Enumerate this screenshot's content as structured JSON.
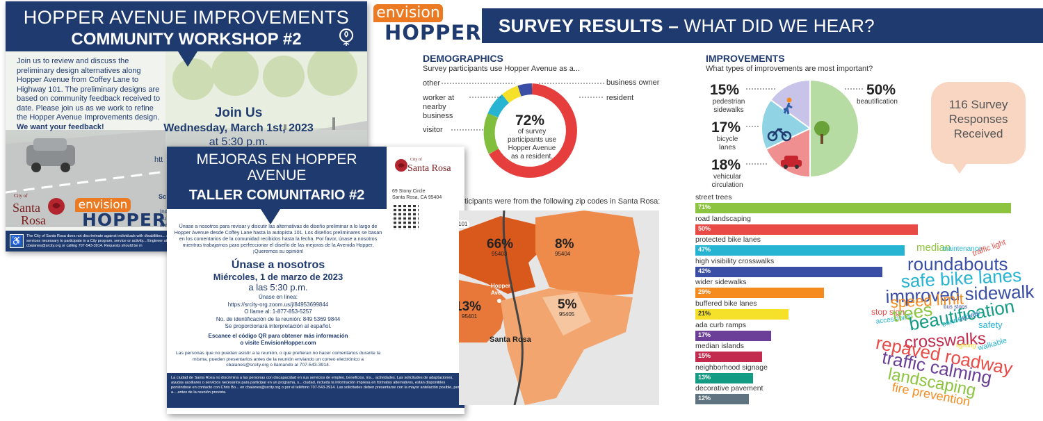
{
  "english_flyer": {
    "title_line1": "HOPPER AVENUE IMPROVEMENTS",
    "title_line2": "COMMUNITY WORKSHOP #2",
    "body": "Join us to review and discuss the preliminary design alternatives along Hopper Avenue from Coffey Lane to Highway 101. The preliminary designs are based on community feedback received to date. Please join us as we work to refine the Hopper Avenue Improvements design.",
    "feedback": "We want your feedback!",
    "join_title": "Join Us",
    "date": "Wednesday, March 1st, 2023",
    "time": "at 5:30 p.m.",
    "partial_1": "htt",
    "partial_2": "Sc",
    "partial_3": "Ind",
    "partial_4": "du",
    "partial_5": "em",
    "footer": "The City of Santa Rosa does not discriminate against individuals with disabilities... aids, or services necessary to participate in a City program, service or activity... Engineer at cbalanes@srcity.org or calling 707-543-3914. Requests should be m",
    "city_logo_line1": "City of",
    "city_logo_line2": "Santa",
    "city_logo_line3": "Rosa",
    "envision": "envision",
    "hopper": "HOPPER"
  },
  "spanish_flyer": {
    "title_line1": "MEJORAS EN HOPPER AVENUE",
    "title_line2": "TALLER COMUNITARIO #2",
    "city_logo_line1": "City of",
    "city_logo_line2": "Santa Rosa",
    "address_line1": "69 Stony Circle",
    "address_line2": "Santa Rosa, CA 95404",
    "body": "Únase a nosotros para revisar y discutir las alternativas de diseño preliminar a lo largo de Hopper Avenue desde Coffey Lane hasta la autopista 101. Los diseños preliminares se basan en los comentarios de la comunidad recibidos hasta la fecha. Por favor, únase a nosotros mientras trabajamos para perfeccionar el diseño de las mejoras de la Avenida Hopper. ¡Queremos su opinión!",
    "join_title": "Únase a nosotros",
    "date": "Miércoles, 1 de marzo de 2023",
    "time": "a las 5:30 p.m.",
    "online_label": "Únase en línea:",
    "online_url": "https://srcity-org.zoom.us/j/84953699844",
    "phone": "O llame al: 1-877-853-5257",
    "meeting_id": "No. de identificación de la reunión: 849 5369 9844",
    "interpretation": "Se proporcionará interpretación al español.",
    "qr_line1": "Escanee el código QR para obtener más información",
    "qr_line2": "o visite EnvisionHopper.com",
    "note": "Las personas que no puedan asistir a la reunión, o que prefieran no hacer comentarios durante la misma, pueden presentarlos antes de la reunión enviando un correo electrónico a cbalanes@srcity.org o llamando al 707-543-3914.",
    "footer": "La ciudad de Santa Rosa no discrimina a las personas con discapacidad en sus servicios de empleo, beneficios, ins... actividades. Las solicitudes de adaptaciones, ayudas auxiliares o servicios necesarios para participar en un programa, s... ciudad, incluida la información impresa en formatos alternativos, están disponibles poniéndose en contacto con Chris Bo... en cbalanes@srcity.org o por el teléfono 707-543-3914. Las solicitudes deben presentarse con la mayor antelación posible, pero a... antes de la reunión prevista."
  },
  "survey": {
    "envision": "envision",
    "hopper": "HOPPER",
    "banner_bold": "SURVEY RESULTS –",
    "banner_rest": " WHAT DID WE HEAR?",
    "demographics": {
      "title": "DEMOGRAPHICS",
      "subtitle": "Survey participants use Hopper Avenue as a...",
      "center_pct": "72%",
      "center_text_1": "of survey",
      "center_text_2": "participants use",
      "center_text_3": "Hopper Avenue",
      "center_text_4": "as a resident.",
      "labels": {
        "other": "other",
        "worker": "worker at\nnearby\nbusiness",
        "visitor": "visitor",
        "business_owner": "business owner",
        "resident": "resident"
      },
      "zip_caption": "ticipants were from the following zip codes in Santa Rosa:",
      "map": {
        "p1": "66%",
        "z1": "95403",
        "p2": "8%",
        "z2": "95404",
        "p3": "13%",
        "z3": "95401",
        "p4": "5%",
        "z4": "95405",
        "hopper_ave": "Hopper Ave",
        "santa_rosa": "Santa Rosa",
        "hwy": "101"
      }
    },
    "improvements": {
      "title": "IMPROVEMENTS",
      "subtitle": "What types of improvements are most important?",
      "pie": [
        {
          "label": "pedestrian\nsidewalks",
          "pct": "15%",
          "value": 15,
          "color": "#c8c3e8"
        },
        {
          "label": "beautification",
          "pct": "50%",
          "value": 50,
          "color": "#b7dca3"
        },
        {
          "label": "vehicular\ncirculation",
          "pct": "18%",
          "value": 18,
          "color": "#ef8f8f"
        },
        {
          "label": "bicycle\nlanes",
          "pct": "17%",
          "value": 17,
          "color": "#8fd3e4"
        }
      ],
      "responses": "116 Survey Responses Received"
    },
    "bars": [
      {
        "label": "street trees",
        "pct": "71%",
        "value": 71,
        "color": "#8cc43f"
      },
      {
        "label": "road landscaping",
        "pct": "50%",
        "value": 50,
        "color": "#e94a45"
      },
      {
        "label": "protected bike lanes",
        "pct": "47%",
        "value": 47,
        "color": "#27b4d3"
      },
      {
        "label": "high visibility crosswalks",
        "pct": "42%",
        "value": 42,
        "color": "#3a4ea6"
      },
      {
        "label": "wider sidewalks",
        "pct": "29%",
        "value": 29,
        "color": "#f58b1f"
      },
      {
        "label": "buffered bike lanes",
        "pct": "21%",
        "value": 21,
        "color": "#f5e02a"
      },
      {
        "label": "ada curb ramps",
        "pct": "17%",
        "value": 17,
        "color": "#6b3f97"
      },
      {
        "label": "median islands",
        "pct": "15%",
        "value": 15,
        "color": "#c22a4e"
      },
      {
        "label": "neighborhood signage",
        "pct": "13%",
        "value": 13,
        "color": "#149b84"
      },
      {
        "label": "decorative pavement",
        "pct": "12%",
        "value": 12,
        "color": "#5f7480"
      }
    ],
    "word_cloud": [
      {
        "text": "median",
        "color": "#8cc43f"
      },
      {
        "text": "maintenance",
        "color": "#27b4d3"
      },
      {
        "text": "traffic light",
        "color": "#e94a45"
      },
      {
        "text": "roundabouts",
        "color": "#3a4ea6"
      },
      {
        "text": "safe bike lanes",
        "color": "#27b4d3"
      },
      {
        "text": "improved sidewalk",
        "color": "#3a4ea6"
      },
      {
        "text": "bus stops",
        "color": "#3a4ea6"
      },
      {
        "text": "stop sign",
        "color": "#e94a45"
      },
      {
        "text": "speed limit",
        "color": "#f58b1f"
      },
      {
        "text": "accessibility",
        "color": "#27b4d3"
      },
      {
        "text": "trees",
        "color": "#8cc43f"
      },
      {
        "text": "beautification",
        "color": "#149b84"
      },
      {
        "text": "murals",
        "color": "#6b3f97"
      },
      {
        "text": "connectivity",
        "color": "#27b4d3"
      },
      {
        "text": "safety",
        "color": "#27b4d3"
      },
      {
        "text": "crosswalks",
        "color": "#c22a4e"
      },
      {
        "text": "lighting",
        "color": "#f5e02a"
      },
      {
        "text": "repaved roadway",
        "color": "#e94a45"
      },
      {
        "text": "walkable",
        "color": "#27b4d3"
      },
      {
        "text": "traffic calming",
        "color": "#6b3f97"
      },
      {
        "text": "landscaping",
        "color": "#8cc43f"
      },
      {
        "text": "fire prevention",
        "color": "#f58b1f"
      }
    ]
  }
}
